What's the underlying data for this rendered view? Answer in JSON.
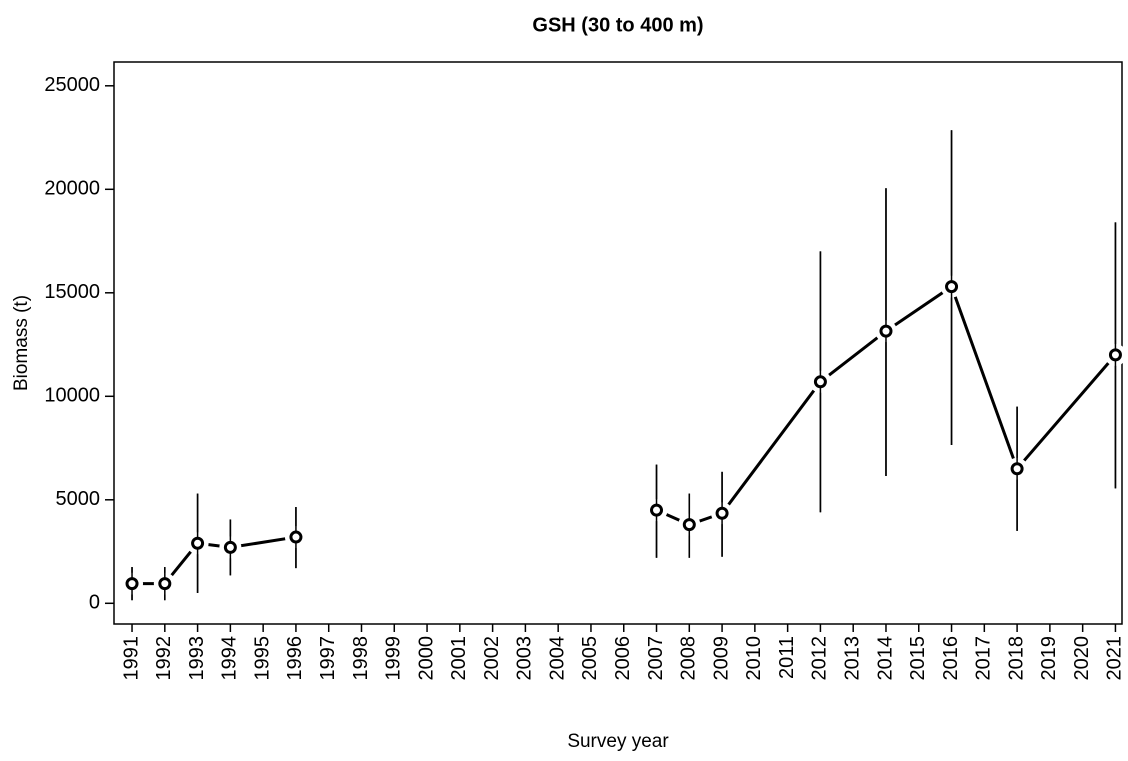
{
  "chart_data": {
    "type": "line",
    "title": "GSH (30 to 400 m)",
    "xlabel": "Survey year",
    "ylabel": "Biomass (t)",
    "x": [
      1991,
      1992,
      1993,
      1994,
      1996,
      null,
      2007,
      2008,
      2009,
      2012,
      2014,
      2016,
      2018,
      2021
    ],
    "values": [
      950,
      950,
      2900,
      2700,
      3200,
      null,
      4500,
      3800,
      4350,
      10700,
      13150,
      15300,
      6500,
      12000
    ],
    "lower": [
      150,
      150,
      500,
      1350,
      1700,
      null,
      2200,
      2200,
      2250,
      4400,
      6150,
      7650,
      3500,
      5550
    ],
    "upper": [
      1750,
      1750,
      5300,
      4050,
      4650,
      null,
      6700,
      5300,
      6350,
      17000,
      20050,
      22850,
      9500,
      18400
    ],
    "color": "#000000",
    "xlim": [
      1990.45,
      2021.2
    ],
    "ylim": [
      -1000,
      26150
    ],
    "xticks": [
      1991,
      1992,
      1993,
      1994,
      1995,
      1996,
      1997,
      1998,
      1999,
      2000,
      2001,
      2002,
      2003,
      2004,
      2005,
      2006,
      2007,
      2008,
      2009,
      2010,
      2011,
      2012,
      2013,
      2014,
      2015,
      2016,
      2017,
      2018,
      2019,
      2020,
      2021
    ],
    "yticks": [
      0,
      5000,
      10000,
      15000,
      20000,
      25000
    ]
  }
}
